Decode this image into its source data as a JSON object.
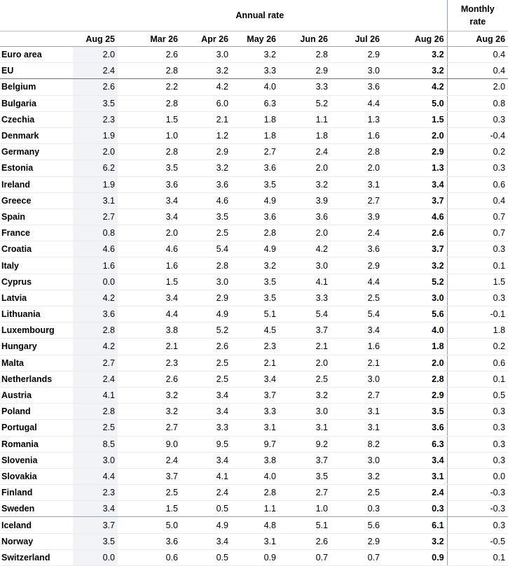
{
  "header": {
    "annual_label": "Annual rate",
    "monthly_label_line1": "Monthly",
    "monthly_label_line2": "rate",
    "columns": [
      "Aug 25",
      "Mar 26",
      "Apr 26",
      "May 26",
      "Jun 26",
      "Jul 26",
      "Aug 26",
      "Aug 26"
    ]
  },
  "rows": [
    {
      "country": "Euro area",
      "values": [
        "2.0",
        "2.6",
        "3.0",
        "3.2",
        "2.8",
        "2.9",
        "3.2",
        "0.4"
      ]
    },
    {
      "country": "EU",
      "values": [
        "2.4",
        "2.8",
        "3.2",
        "3.3",
        "2.9",
        "3.0",
        "3.2",
        "0.4"
      ]
    },
    {
      "country": "Belgium",
      "values": [
        "2.6",
        "2.2",
        "4.2",
        "4.0",
        "3.3",
        "3.6",
        "4.2",
        "2.0"
      ]
    },
    {
      "country": "Bulgaria",
      "values": [
        "3.5",
        "2.8",
        "6.0",
        "6.3",
        "5.2",
        "4.4",
        "5.0",
        "0.8"
      ]
    },
    {
      "country": "Czechia",
      "values": [
        "2.3",
        "1.5",
        "2.1",
        "1.8",
        "1.1",
        "1.3",
        "1.5",
        "0.3"
      ]
    },
    {
      "country": "Denmark",
      "values": [
        "1.9",
        "1.0",
        "1.2",
        "1.8",
        "1.8",
        "1.6",
        "2.0",
        "-0.4"
      ]
    },
    {
      "country": "Germany",
      "values": [
        "2.0",
        "2.8",
        "2.9",
        "2.7",
        "2.4",
        "2.8",
        "2.9",
        "0.2"
      ]
    },
    {
      "country": "Estonia",
      "values": [
        "6.2",
        "3.5",
        "3.2",
        "3.6",
        "2.0",
        "2.0",
        "1.3",
        "0.3"
      ]
    },
    {
      "country": "Ireland",
      "values": [
        "1.9",
        "3.6",
        "3.6",
        "3.5",
        "3.2",
        "3.1",
        "3.4",
        "0.6"
      ]
    },
    {
      "country": "Greece",
      "values": [
        "3.1",
        "3.4",
        "4.6",
        "4.9",
        "3.9",
        "2.7",
        "3.7",
        "0.4"
      ]
    },
    {
      "country": "Spain",
      "values": [
        "2.7",
        "3.4",
        "3.5",
        "3.6",
        "3.6",
        "3.9",
        "4.6",
        "0.7"
      ]
    },
    {
      "country": "France",
      "values": [
        "0.8",
        "2.0",
        "2.5",
        "2.8",
        "2.0",
        "2.4",
        "2.6",
        "0.7"
      ]
    },
    {
      "country": "Croatia",
      "values": [
        "4.6",
        "4.6",
        "5.4",
        "4.9",
        "4.2",
        "3.6",
        "3.7",
        "0.3"
      ]
    },
    {
      "country": "Italy",
      "values": [
        "1.6",
        "1.6",
        "2.8",
        "3.2",
        "3.0",
        "2.9",
        "3.2",
        "0.1"
      ]
    },
    {
      "country": "Cyprus",
      "values": [
        "0.0",
        "1.5",
        "3.0",
        "3.5",
        "4.1",
        "4.4",
        "5.2",
        "1.5"
      ]
    },
    {
      "country": "Latvia",
      "values": [
        "4.2",
        "3.4",
        "2.9",
        "3.5",
        "3.3",
        "2.5",
        "3.0",
        "0.3"
      ]
    },
    {
      "country": "Lithuania",
      "values": [
        "3.6",
        "4.4",
        "4.9",
        "5.1",
        "5.4",
        "5.4",
        "5.6",
        "-0.1"
      ]
    },
    {
      "country": "Luxembourg",
      "values": [
        "2.8",
        "3.8",
        "5.2",
        "4.5",
        "3.7",
        "3.4",
        "4.0",
        "1.8"
      ]
    },
    {
      "country": "Hungary",
      "values": [
        "4.2",
        "2.1",
        "2.6",
        "2.3",
        "2.1",
        "1.6",
        "1.8",
        "0.2"
      ]
    },
    {
      "country": "Malta",
      "values": [
        "2.7",
        "2.3",
        "2.5",
        "2.1",
        "2.0",
        "2.1",
        "2.0",
        "0.6"
      ]
    },
    {
      "country": "Netherlands",
      "values": [
        "2.4",
        "2.6",
        "2.5",
        "3.4",
        "2.5",
        "3.0",
        "2.8",
        "0.1"
      ]
    },
    {
      "country": "Austria",
      "values": [
        "4.1",
        "3.2",
        "3.4",
        "3.7",
        "3.2",
        "2.7",
        "2.9",
        "0.5"
      ]
    },
    {
      "country": "Poland",
      "values": [
        "2.8",
        "3.2",
        "3.4",
        "3.3",
        "3.0",
        "3.1",
        "3.5",
        "0.3"
      ]
    },
    {
      "country": "Portugal",
      "values": [
        "2.5",
        "2.7",
        "3.3",
        "3.1",
        "3.1",
        "3.1",
        "3.6",
        "0.3"
      ]
    },
    {
      "country": "Romania",
      "values": [
        "8.5",
        "9.0",
        "9.5",
        "9.7",
        "9.2",
        "8.2",
        "6.3",
        "0.3"
      ]
    },
    {
      "country": "Slovenia",
      "values": [
        "3.0",
        "2.4",
        "3.4",
        "3.8",
        "3.7",
        "3.0",
        "3.4",
        "0.3"
      ]
    },
    {
      "country": "Slovakia",
      "values": [
        "4.4",
        "3.7",
        "4.1",
        "4.0",
        "3.5",
        "3.2",
        "3.1",
        "0.0"
      ]
    },
    {
      "country": "Finland",
      "values": [
        "2.3",
        "2.5",
        "2.4",
        "2.8",
        "2.7",
        "2.5",
        "2.4",
        "-0.3"
      ]
    },
    {
      "country": "Sweden",
      "values": [
        "3.4",
        "1.5",
        "0.5",
        "1.1",
        "1.0",
        "0.3",
        "0.3",
        "-0.3"
      ]
    },
    {
      "country": "Iceland",
      "values": [
        "3.7",
        "5.0",
        "4.9",
        "4.8",
        "5.1",
        "5.6",
        "6.1",
        "0.3"
      ]
    },
    {
      "country": "Norway",
      "values": [
        "3.5",
        "3.6",
        "3.4",
        "3.1",
        "2.6",
        "2.9",
        "3.2",
        "-0.5"
      ]
    },
    {
      "country": "Switzerland",
      "values": [
        "0.0",
        "0.6",
        "0.5",
        "0.9",
        "0.7",
        "0.7",
        "0.9",
        "0.1"
      ]
    }
  ]
}
